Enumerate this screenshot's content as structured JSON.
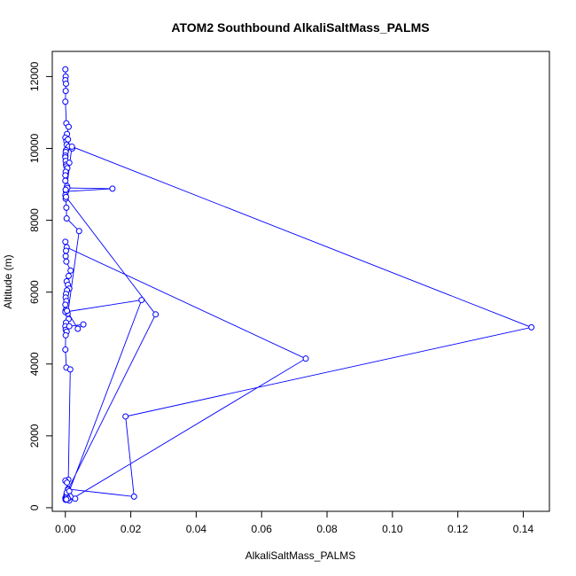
{
  "chart_data": {
    "type": "line",
    "title": "ATOM2 Southbound AlkaliSaltMass_PALMS",
    "xlabel": "AlkaliSaltMass_PALMS",
    "ylabel": "Altitude (m)",
    "xlim": [
      -0.004,
      0.148
    ],
    "ylim": [
      -100,
      12700
    ],
    "x_ticks": [
      0.0,
      0.02,
      0.04,
      0.06,
      0.08,
      0.1,
      0.12,
      0.14
    ],
    "x_tick_labels": [
      "0.00",
      "0.02",
      "0.04",
      "0.06",
      "0.08",
      "0.10",
      "0.12",
      "0.14"
    ],
    "y_ticks": [
      0,
      2000,
      4000,
      6000,
      8000,
      10000,
      12000
    ],
    "y_tick_labels": [
      "0",
      "2000",
      "4000",
      "6000",
      "8000",
      "10000",
      "12000"
    ],
    "grid": false,
    "marker": "open-circle",
    "series_color": "#0000ff",
    "series": [
      {
        "x": [
          0.0,
          0.0001,
          0.0,
          0.0002,
          0.0001,
          0.0,
          0.0003,
          0.001,
          0.0005,
          0.0,
          0.0003,
          0.0008,
          0.0004,
          0.001,
          0.0021,
          0.0002,
          0.0001,
          0.0,
          0.0,
          0.0001,
          0.0002,
          0.0012,
          0.0003,
          0.0006,
          0.0001,
          0.0,
          0.0,
          0.0005,
          0.002,
          0.1425,
          0.0184,
          0.021,
          0.0008,
          0.003,
          0.0002,
          0.0001,
          0.0012,
          0.0735,
          0.0004,
          0.0,
          0.0002,
          0.0001,
          0.0003,
          0.0016,
          0.001,
          0.0004,
          0.0008,
          0.0012,
          0.0005,
          0.0002,
          0.0001,
          0.0003,
          0.0,
          0.0001,
          0.0007,
          0.001,
          0.0002,
          0.0,
          0.0001,
          0.0042,
          0.0004,
          0.0003,
          0.0001,
          0.0002,
          0.0144,
          0.0006,
          0.0001,
          0.0,
          0.0002,
          0.0276,
          0.0008,
          0.0003,
          0.0,
          0.0001,
          0.0003,
          0.0005,
          0.0004,
          0.0012,
          0.0233,
          0.0,
          0.0005,
          0.0038,
          0.0055,
          0.0012,
          0.0004,
          0.0001,
          0.0,
          0.0003,
          0.0015,
          0.0009,
          0.0,
          0.0005,
          0.0008,
          0.0003
        ],
        "y": [
          12200,
          12000,
          11900,
          11800,
          11600,
          11300,
          10700,
          10600,
          10400,
          10300,
          10200,
          10250,
          10100,
          10050,
          10000,
          9950,
          9900,
          9800,
          9750,
          9650,
          9550,
          9600,
          9500,
          9450,
          9350,
          9250,
          9100,
          8950,
          10050,
          5020,
          2540,
          310,
          520,
          250,
          230,
          220,
          200,
          4150,
          7250,
          7400,
          7150,
          7000,
          6850,
          6600,
          6450,
          6300,
          6200,
          6100,
          6050,
          5950,
          5850,
          5750,
          5650,
          5500,
          5400,
          5250,
          5150,
          5050,
          4950,
          7700,
          8050,
          8350,
          8600,
          8800,
          8880,
          8900,
          8850,
          8700,
          8650,
          5380,
          500,
          350,
          270,
          240,
          260,
          300,
          420,
          460,
          5780,
          5450,
          5480,
          4980,
          5100,
          5050,
          4900,
          4800,
          4400,
          3900,
          3850,
          780,
          750,
          700,
          250,
          230
        ]
      }
    ]
  }
}
